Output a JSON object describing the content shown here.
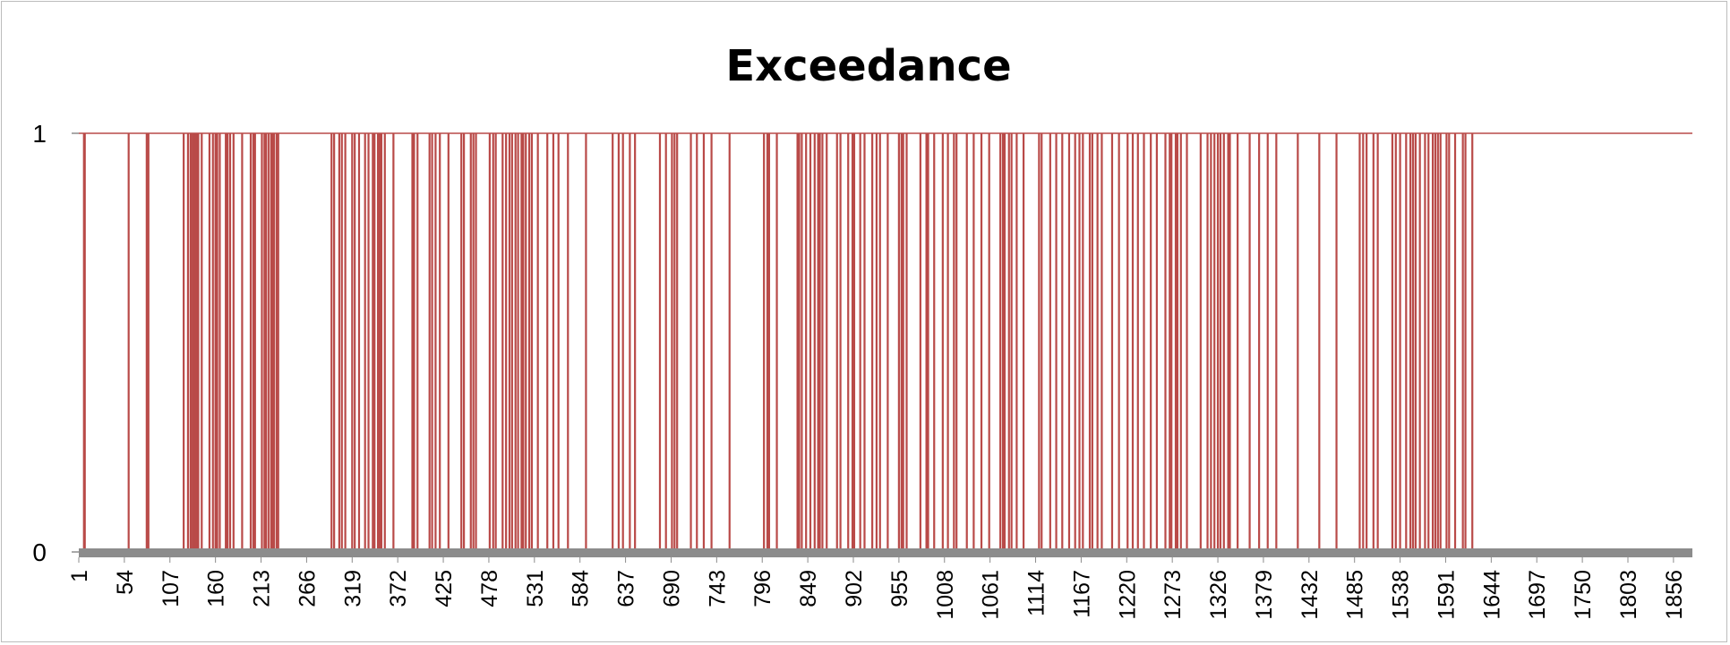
{
  "chart_data": {
    "type": "bar",
    "title": "Exceedance",
    "xlabel": "",
    "ylabel": "",
    "ylim": [
      0,
      1
    ],
    "yticks": [
      0,
      1
    ],
    "xlim": [
      1,
      1878
    ],
    "xtick_start": 1,
    "xtick_step": 53,
    "xtick_labels": [
      "1",
      "54",
      "107",
      "160",
      "213",
      "266",
      "319",
      "372",
      "425",
      "478",
      "531",
      "584",
      "637",
      "690",
      "743",
      "796",
      "849",
      "902",
      "955",
      "1008",
      "1061",
      "1114",
      "1167",
      "1220",
      "1273",
      "1326",
      "1379",
      "1432",
      "1485",
      "1538",
      "1591",
      "1644",
      "1697",
      "1750",
      "1803",
      "1856"
    ],
    "grid": false,
    "legend": "none",
    "colors": {
      "bar": "#b94a48",
      "baseline": "#8c8c8c",
      "axis": "#8c8c8c"
    },
    "series": [
      {
        "exceedance_days": [
          7,
          8,
          59,
          80,
          82,
          123,
          128,
          131,
          132,
          134,
          136,
          138,
          140,
          144,
          153,
          157,
          160,
          162,
          165,
          172,
          174,
          177,
          181,
          191,
          201,
          204,
          206,
          214,
          217,
          219,
          222,
          225,
          226,
          228,
          231,
          233,
          295,
          298,
          304,
          307,
          311,
          319,
          322,
          327,
          334,
          338,
          343,
          345,
          349,
          351,
          353,
          357,
          367,
          389,
          391,
          395,
          409,
          412,
          416,
          421,
          431,
          446,
          449,
          457,
          460,
          463,
          479,
          483,
          486,
          494,
          498,
          502,
          505,
          509,
          512,
          516,
          518,
          521,
          525,
          528,
          535,
          546,
          553,
          559,
          570,
          591,
          622,
          629,
          634,
          642,
          648,
          677,
          684,
          691,
          694,
          697,
          713,
          720,
          728,
          737,
          758,
          798,
          802,
          804,
          813,
          837,
          839,
          842,
          847,
          852,
          857,
          861,
          863,
          866,
          871,
          883,
          887,
          896,
          901,
          903,
          910,
          915,
          924,
          929,
          933,
          942,
          955,
          958,
          960,
          964,
          980,
          987,
          989,
          996,
          1006,
          1012,
          1019,
          1022,
          1034,
          1042,
          1051,
          1060,
          1073,
          1076,
          1078,
          1083,
          1086,
          1092,
          1100,
          1118,
          1121,
          1131,
          1138,
          1145,
          1153,
          1160,
          1165,
          1169,
          1177,
          1180,
          1186,
          1191,
          1203,
          1211,
          1221,
          1227,
          1233,
          1240,
          1248,
          1255,
          1265,
          1270,
          1272,
          1277,
          1279,
          1283,
          1290,
          1306,
          1314,
          1318,
          1322,
          1326,
          1329,
          1333,
          1338,
          1340,
          1349,
          1363,
          1374,
          1384,
          1394,
          1419,
          1444,
          1464,
          1491,
          1495,
          1499,
          1507,
          1512,
          1529,
          1533,
          1538,
          1545,
          1550,
          1553,
          1556,
          1561,
          1567,
          1571,
          1576,
          1579,
          1582,
          1585,
          1592,
          1595,
          1602,
          1611,
          1614,
          1622
        ]
      }
    ]
  }
}
